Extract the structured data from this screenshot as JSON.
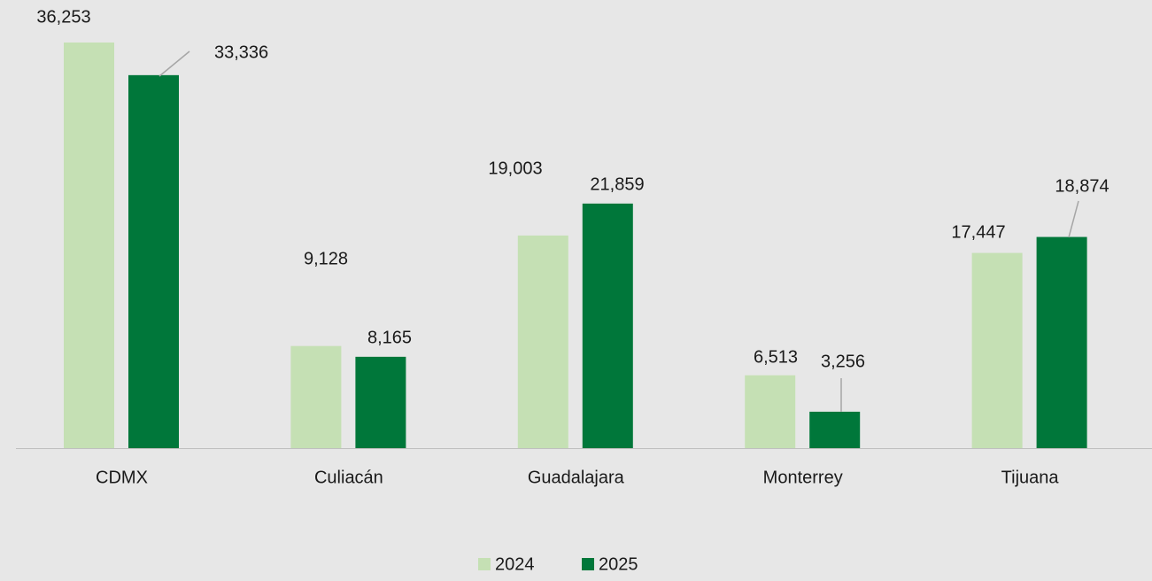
{
  "chart_data": {
    "type": "bar",
    "categories": [
      "CDMX",
      "Culiacán",
      "Guadalajara",
      "Monterrey",
      "Tijuana"
    ],
    "series": [
      {
        "name": "2024",
        "values": [
          36253,
          9128,
          19003,
          6513,
          17447
        ],
        "value_labels": [
          "36,253",
          "9,128",
          "19,003",
          "6,513",
          "17,447"
        ],
        "color": "#c5e0b4"
      },
      {
        "name": "2025",
        "values": [
          33336,
          8165,
          21859,
          3256,
          18874
        ],
        "value_labels": [
          "33,336",
          "8,165",
          "21,859",
          "3,256",
          "18,874"
        ],
        "color": "#00773a"
      }
    ],
    "ylim": [
      0,
      36253
    ],
    "grid": false,
    "legend_position": "bottom",
    "axis_color": "#bfbfbf",
    "leader_line_color": "#a6a6a6"
  }
}
